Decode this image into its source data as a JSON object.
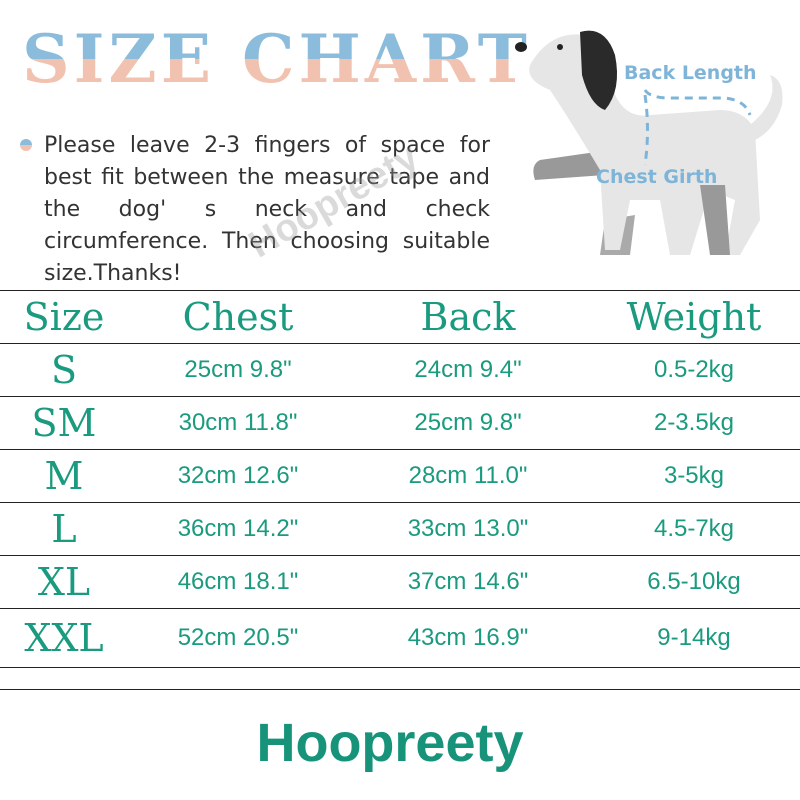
{
  "header": {
    "title": "SIZE CHART"
  },
  "note": "Please leave 2-3 fingers of space for best fit between the measure tape and the dog' s neck and check circumference. Then choosing suitable size.Thanks!",
  "diagram": {
    "back_label": "Back Length",
    "chest_label": "Chest Girth"
  },
  "watermark": "Hoopreety",
  "table": {
    "headers": [
      "Size",
      "Chest",
      "Back",
      "Weight"
    ],
    "rows": [
      [
        "S",
        "25cm  9.8\"",
        "24cm  9.4\"",
        "0.5-2kg"
      ],
      [
        "SM",
        "30cm  11.8\"",
        "25cm  9.8\"",
        "2-3.5kg"
      ],
      [
        "M",
        "32cm  12.6\"",
        "28cm  11.0\"",
        "3-5kg"
      ],
      [
        "L",
        "36cm  14.2\"",
        "33cm  13.0\"",
        "4.5-7kg"
      ],
      [
        "XL",
        "46cm  18.1\"",
        "37cm  14.6\"",
        "6.5-10kg"
      ],
      [
        "XXL",
        "52cm  20.5\"",
        "43cm  16.9\"",
        "9-14kg"
      ]
    ]
  },
  "brand": "Hoopreety",
  "colors": {
    "accent": "#1a9a7e",
    "title_top": "#8bbcdc",
    "title_bottom": "#f2c2b0"
  }
}
